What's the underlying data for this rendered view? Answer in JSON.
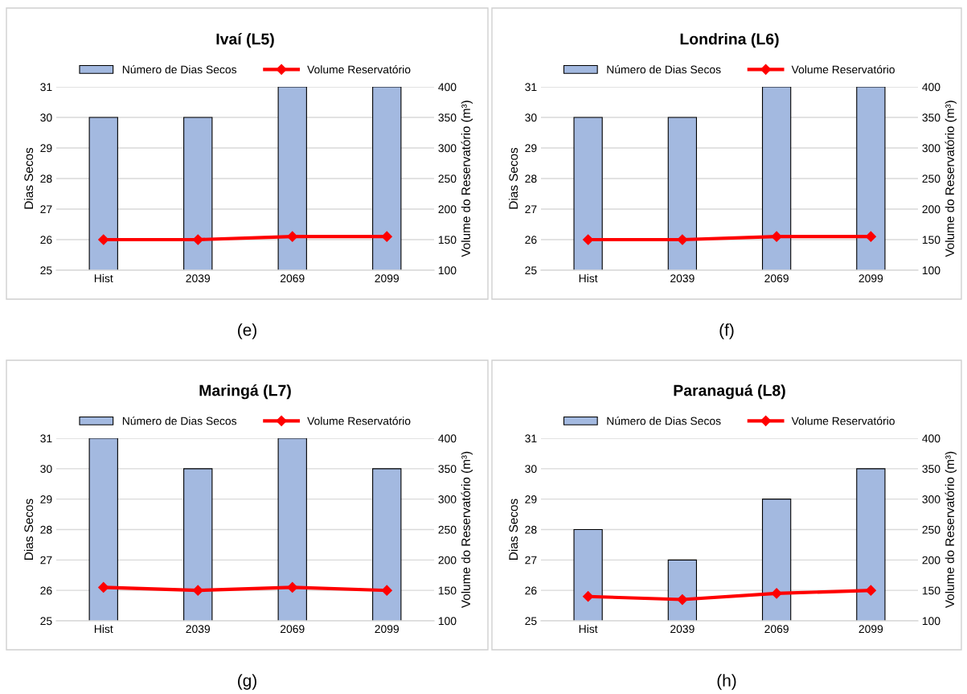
{
  "chart_data": [
    {
      "type": "bar",
      "title": "Ivaí (L5)",
      "categories": [
        "Hist",
        "2039",
        "2069",
        "2099"
      ],
      "ylabel": "Dias Secos",
      "y2label": "Volume do Reservatório (m³)",
      "ylim": [
        25,
        31
      ],
      "yticks": [
        25,
        26,
        27,
        28,
        29,
        30,
        31
      ],
      "y2lim": [
        100,
        400
      ],
      "y2ticks": [
        100,
        150,
        200,
        250,
        300,
        350,
        400
      ],
      "grid": "y",
      "legend": "top",
      "marker": "diamond",
      "annotations": [
        "(e)"
      ],
      "series": [
        {
          "name": "Número de Dias Secos",
          "color": "#a3b9e0",
          "values": [
            30,
            30,
            31,
            31
          ]
        },
        {
          "name": "Volume Reservatório",
          "type": "line",
          "axis": "y2",
          "color": "#ff0000",
          "values": [
            150,
            150,
            155,
            155
          ]
        }
      ]
    },
    {
      "type": "bar",
      "title": "Londrina (L6)",
      "categories": [
        "Hist",
        "2039",
        "2069",
        "2099"
      ],
      "ylabel": "Dias Secos",
      "y2label": "Volume do Reservatório (m³)",
      "ylim": [
        25,
        31
      ],
      "yticks": [
        25,
        26,
        27,
        28,
        29,
        30,
        31
      ],
      "y2lim": [
        100,
        400
      ],
      "y2ticks": [
        100,
        150,
        200,
        250,
        300,
        350,
        400
      ],
      "grid": "y",
      "legend": "top",
      "marker": "diamond",
      "annotations": [
        "(f)"
      ],
      "series": [
        {
          "name": "Número de Dias Secos",
          "color": "#a3b9e0",
          "values": [
            30,
            30,
            31,
            31
          ]
        },
        {
          "name": "Volume Reservatório",
          "type": "line",
          "axis": "y2",
          "color": "#ff0000",
          "values": [
            150,
            150,
            155,
            155
          ]
        }
      ]
    },
    {
      "type": "bar",
      "title": "Maringá (L7)",
      "categories": [
        "Hist",
        "2039",
        "2069",
        "2099"
      ],
      "ylabel": "Dias Secos",
      "y2label": "Volume do Reservatório (m³)",
      "ylim": [
        25,
        31
      ],
      "yticks": [
        25,
        26,
        27,
        28,
        29,
        30,
        31
      ],
      "y2lim": [
        100,
        400
      ],
      "y2ticks": [
        100,
        150,
        200,
        250,
        300,
        350,
        400
      ],
      "grid": "y",
      "legend": "top",
      "marker": "diamond",
      "annotations": [
        "(g)"
      ],
      "series": [
        {
          "name": "Número de Dias Secos",
          "color": "#a3b9e0",
          "values": [
            31,
            30,
            31,
            30
          ]
        },
        {
          "name": "Volume Reservatório",
          "type": "line",
          "axis": "y2",
          "color": "#ff0000",
          "values": [
            155,
            150,
            155,
            150
          ]
        }
      ]
    },
    {
      "type": "bar",
      "title": "Paranaguá (L8)",
      "categories": [
        "Hist",
        "2039",
        "2069",
        "2099"
      ],
      "ylabel": "Dias Secos",
      "y2label": "Volume do Reservatório (m³)",
      "ylim": [
        25,
        31
      ],
      "yticks": [
        25,
        26,
        27,
        28,
        29,
        30,
        31
      ],
      "y2lim": [
        100,
        400
      ],
      "y2ticks": [
        100,
        150,
        200,
        250,
        300,
        350,
        400
      ],
      "grid": "y",
      "legend": "top",
      "marker": "diamond",
      "annotations": [
        "(h)"
      ],
      "series": [
        {
          "name": "Número de Dias Secos",
          "color": "#a3b9e0",
          "values": [
            28,
            27,
            29,
            30
          ]
        },
        {
          "name": "Volume Reservatório",
          "type": "line",
          "axis": "y2",
          "color": "#ff0000",
          "values": [
            140,
            135,
            145,
            150
          ]
        }
      ]
    }
  ]
}
